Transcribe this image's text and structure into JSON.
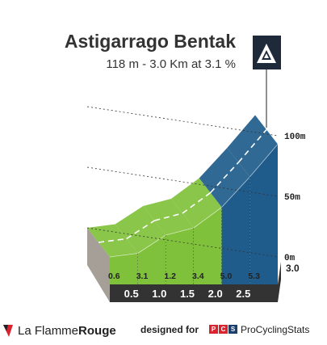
{
  "climb": {
    "name": "Astigarrago Bentak",
    "stats": "118 m - 3.0 Km at 3.1 %",
    "category_icon": "mountain-icon"
  },
  "chart_data": {
    "type": "area",
    "title": "Astigarrago Bentak",
    "subtitle": "118 m - 3.0 Km at 3.1 %",
    "x_unit": "km",
    "xlim": [
      0,
      3.0
    ],
    "ylim": [
      0,
      100
    ],
    "elevation_ticks": [
      "100m",
      "50m",
      "0m"
    ],
    "elevation_tick_values": [
      100,
      50,
      0
    ],
    "km_marker_labels": [
      "0.5",
      "1.0",
      "1.5",
      "2.0",
      "2.5",
      "3.0"
    ],
    "km_marker_values": [
      0.5,
      1.0,
      1.5,
      2.0,
      2.5,
      3.0
    ],
    "segments": [
      {
        "x_start": 0.0,
        "x_end": 0.5,
        "gradient": "0.6",
        "elev_start": 0,
        "elev_end": 3
      },
      {
        "x_start": 0.5,
        "x_end": 1.0,
        "gradient": "3.1",
        "elev_start": 3,
        "elev_end": 18
      },
      {
        "x_start": 1.0,
        "x_end": 1.5,
        "gradient": "1.2",
        "elev_start": 18,
        "elev_end": 24
      },
      {
        "x_start": 1.5,
        "x_end": 2.0,
        "gradient": "3.4",
        "elev_start": 24,
        "elev_end": 41
      },
      {
        "x_start": 2.0,
        "x_end": 2.5,
        "gradient": "5.0",
        "elev_start": 41,
        "elev_end": 66
      },
      {
        "x_start": 2.5,
        "x_end": 3.0,
        "gradient": "5.3",
        "elev_start": 66,
        "elev_end": 93
      }
    ],
    "colors": {
      "gentle": "#7fc13a",
      "steep": "#1f5c8c",
      "side_wall": "#a59f97",
      "km_bar": "#333333",
      "grid": "#333333"
    },
    "steep_threshold": 5.0
  },
  "footer": {
    "brand_logo": "la-flamme-rouge-flag-icon",
    "brand_prefix": "La Flamme",
    "brand_suffix": "Rouge",
    "designed_for": "designed for",
    "pcs_letters": [
      "P",
      "C",
      "S"
    ],
    "pcs_name": "ProCyclingStats"
  }
}
